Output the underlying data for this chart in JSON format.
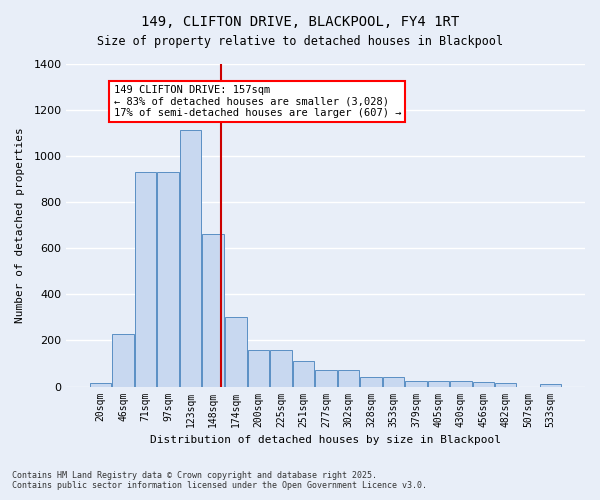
{
  "title": "149, CLIFTON DRIVE, BLACKPOOL, FY4 1RT",
  "subtitle": "Size of property relative to detached houses in Blackpool",
  "xlabel": "Distribution of detached houses by size in Blackpool",
  "ylabel": "Number of detached properties",
  "bar_color": "#c8d8f0",
  "bar_edge_color": "#5a8fc4",
  "background_color": "#e8eef8",
  "grid_color": "#ffffff",
  "annotation_text": "149 CLIFTON DRIVE: 157sqm\n← 83% of detached houses are smaller (3,028)\n17% of semi-detached houses are larger (607) →",
  "vline_x": 157,
  "vline_color": "#cc0000",
  "categories": [
    "20sqm",
    "46sqm",
    "71sqm",
    "97sqm",
    "123sqm",
    "148sqm",
    "174sqm",
    "200sqm",
    "225sqm",
    "251sqm",
    "277sqm",
    "302sqm",
    "328sqm",
    "353sqm",
    "379sqm",
    "405sqm",
    "430sqm",
    "456sqm",
    "482sqm",
    "507sqm",
    "533sqm"
  ],
  "values": [
    15,
    230,
    930,
    930,
    1115,
    660,
    300,
    160,
    160,
    110,
    70,
    70,
    40,
    40,
    25,
    25,
    25,
    20,
    15,
    0,
    10
  ],
  "bin_edges": [
    7.5,
    33,
    58.5,
    84,
    109.5,
    135,
    160.5,
    187,
    212.5,
    238,
    263.5,
    289,
    314.5,
    340,
    365.5,
    391,
    416.5,
    442,
    467.5,
    493,
    518.5,
    544
  ],
  "ylim": [
    0,
    1400
  ],
  "footnote": "Contains HM Land Registry data © Crown copyright and database right 2025.\nContains public sector information licensed under the Open Government Licence v3.0."
}
